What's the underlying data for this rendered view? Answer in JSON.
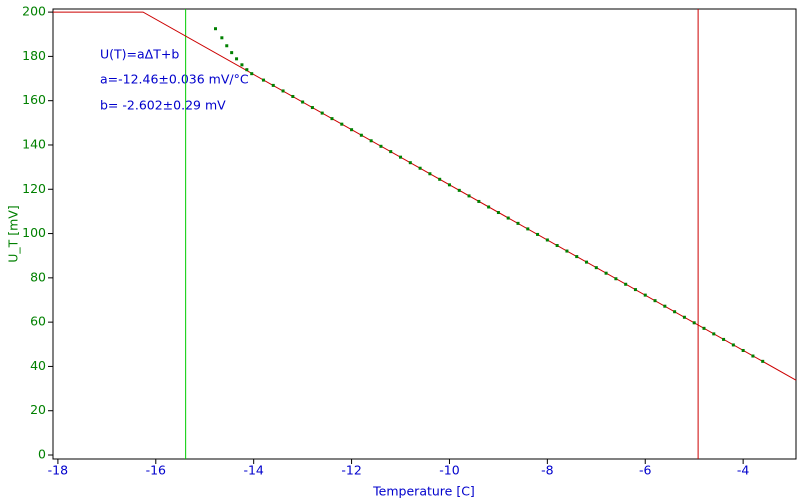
{
  "chart_data": {
    "type": "scatter",
    "xlabel": "Temperature [C]",
    "ylabel": "U_T [mV]",
    "annotations": [
      "U(T)=aΔT+b",
      "a=-12.46±0.036 mV/°C",
      "b= -2.602±0.29 mV"
    ],
    "xlim": [
      -18.1,
      -2.92
    ],
    "ylim": [
      -1.8,
      201.4
    ],
    "xticks": [
      -18,
      -16,
      -14,
      -12,
      -10,
      -8,
      -6,
      -4
    ],
    "yticks": [
      0,
      20,
      40,
      60,
      80,
      100,
      120,
      140,
      160,
      180,
      200
    ],
    "series": [
      {
        "style": "line",
        "color": "#cc0000",
        "x": [
          -18.1,
          -16.26,
          -2.92
        ],
        "values": [
          200,
          200,
          33.8
        ]
      },
      {
        "style": "markers",
        "color": "#008000",
        "x": [
          -14.78,
          -14.65,
          -14.55,
          -14.45,
          -14.35,
          -14.24,
          -14.14,
          -14.04,
          -13.8,
          -13.6,
          -13.4,
          -13.2,
          -13.0,
          -12.8,
          -12.6,
          -12.4,
          -12.2,
          -12.0,
          -11.8,
          -11.6,
          -11.4,
          -11.2,
          -11.0,
          -10.8,
          -10.6,
          -10.4,
          -10.2,
          -10.0,
          -9.8,
          -9.6,
          -9.4,
          -9.2,
          -9.0,
          -8.8,
          -8.6,
          -8.4,
          -8.2,
          -8.0,
          -7.8,
          -7.6,
          -7.4,
          -7.2,
          -7.0,
          -6.8,
          -6.6,
          -6.4,
          -6.2,
          -6.0,
          -5.8,
          -5.6,
          -5.4,
          -5.2,
          -5.0,
          -4.8,
          -4.6,
          -4.4,
          -4.2,
          -4.0,
          -3.8,
          -3.6
        ],
        "values": [
          192.5,
          188.4,
          184.8,
          181.7,
          178.9,
          176.2,
          174.0,
          172.2,
          169.3,
          166.9,
          164.4,
          161.9,
          159.4,
          156.9,
          154.4,
          151.9,
          149.4,
          146.9,
          144.4,
          141.9,
          139.4,
          137.0,
          134.5,
          132.0,
          129.5,
          127.0,
          124.5,
          122.0,
          119.5,
          117.0,
          114.5,
          112.0,
          109.5,
          107.0,
          104.6,
          102.1,
          99.6,
          97.1,
          94.6,
          92.1,
          89.6,
          87.1,
          84.6,
          82.1,
          79.6,
          77.1,
          74.7,
          72.2,
          69.7,
          67.2,
          64.7,
          62.2,
          59.7,
          57.2,
          54.7,
          52.2,
          49.7,
          47.2,
          44.7,
          42.3
        ]
      }
    ],
    "cursors": [
      {
        "x": -15.39,
        "color": "#00cc00"
      },
      {
        "x": -4.92,
        "color": "#cc0000"
      }
    ],
    "xtick_color": "#0000cc",
    "ytick_color": "#008000"
  }
}
